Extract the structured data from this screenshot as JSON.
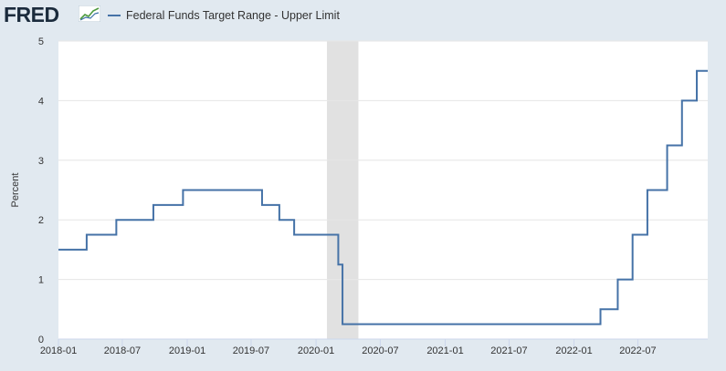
{
  "brand": {
    "logo_text": "FRED",
    "logo_icon": "line-graph-icon"
  },
  "colors": {
    "series": "#4572a7",
    "background": "#e1e9f0",
    "plot": "#ffffff",
    "recession": "#e1e1e1",
    "grid": "#e6e6e6"
  },
  "chart_data": {
    "type": "line",
    "title": "",
    "xlabel": "",
    "ylabel": "Percent",
    "ylim": [
      0,
      5
    ],
    "yticks": [
      0,
      1,
      2,
      3,
      4,
      5
    ],
    "xlim": [
      "2018-01-01",
      "2023-01-15"
    ],
    "xticks": [
      "2018-01",
      "2018-07",
      "2019-01",
      "2019-07",
      "2020-01",
      "2020-07",
      "2021-01",
      "2021-07",
      "2022-01",
      "2022-07"
    ],
    "grid": true,
    "legend_position": "top-left",
    "recession_shading": [
      [
        "2020-02-01",
        "2020-04-30"
      ]
    ],
    "series": [
      {
        "name": "Federal Funds Target Range - Upper Limit",
        "step": true,
        "points": [
          [
            "2018-01-01",
            1.5
          ],
          [
            "2018-03-22",
            1.75
          ],
          [
            "2018-06-14",
            2.0
          ],
          [
            "2018-09-27",
            2.25
          ],
          [
            "2018-12-20",
            2.5
          ],
          [
            "2019-08-01",
            2.25
          ],
          [
            "2019-09-19",
            2.0
          ],
          [
            "2019-10-31",
            1.75
          ],
          [
            "2020-03-04",
            1.25
          ],
          [
            "2020-03-16",
            0.25
          ],
          [
            "2022-03-17",
            0.5
          ],
          [
            "2022-05-05",
            1.0
          ],
          [
            "2022-06-16",
            1.75
          ],
          [
            "2022-07-28",
            2.5
          ],
          [
            "2022-09-22",
            3.25
          ],
          [
            "2022-11-03",
            4.0
          ],
          [
            "2022-12-15",
            4.5
          ],
          [
            "2023-01-15",
            4.5
          ]
        ]
      }
    ]
  }
}
